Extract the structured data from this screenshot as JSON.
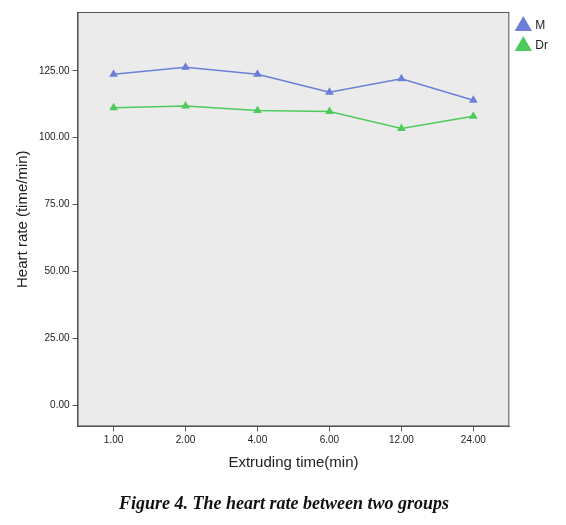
{
  "chart_data": {
    "type": "line",
    "title": "Figure 4. The heart rate between two groups",
    "x_label": "Extruding time(min)",
    "y_label": "Heart rate (time/min)",
    "categories": [
      "1.00",
      "2.00",
      "4.00",
      "6.00",
      "12.00",
      "24.00"
    ],
    "series": [
      {
        "name": "M",
        "color": "#6b7fd8",
        "marker": "triangle",
        "line_style": "solid",
        "values": [
          123.7,
          126.3,
          123.7,
          117,
          122,
          114
        ]
      },
      {
        "name": "Dr",
        "color": "#4dcb5b",
        "marker": "triangle",
        "line_style": "solid",
        "values": [
          111.2,
          111.8,
          110.2,
          109.8,
          103.4,
          108
        ]
      }
    ],
    "ylim": [
      -8,
      147
    ],
    "yticks": [
      {
        "value": 0,
        "label": "0.00"
      },
      {
        "value": 25,
        "label": "25.00"
      },
      {
        "value": 50,
        "label": "50.00"
      },
      {
        "value": 75,
        "label": "75.00"
      },
      {
        "value": 100,
        "label": "100.00"
      },
      {
        "value": 125,
        "label": "125.00"
      }
    ],
    "grid": false,
    "legend": "right"
  }
}
